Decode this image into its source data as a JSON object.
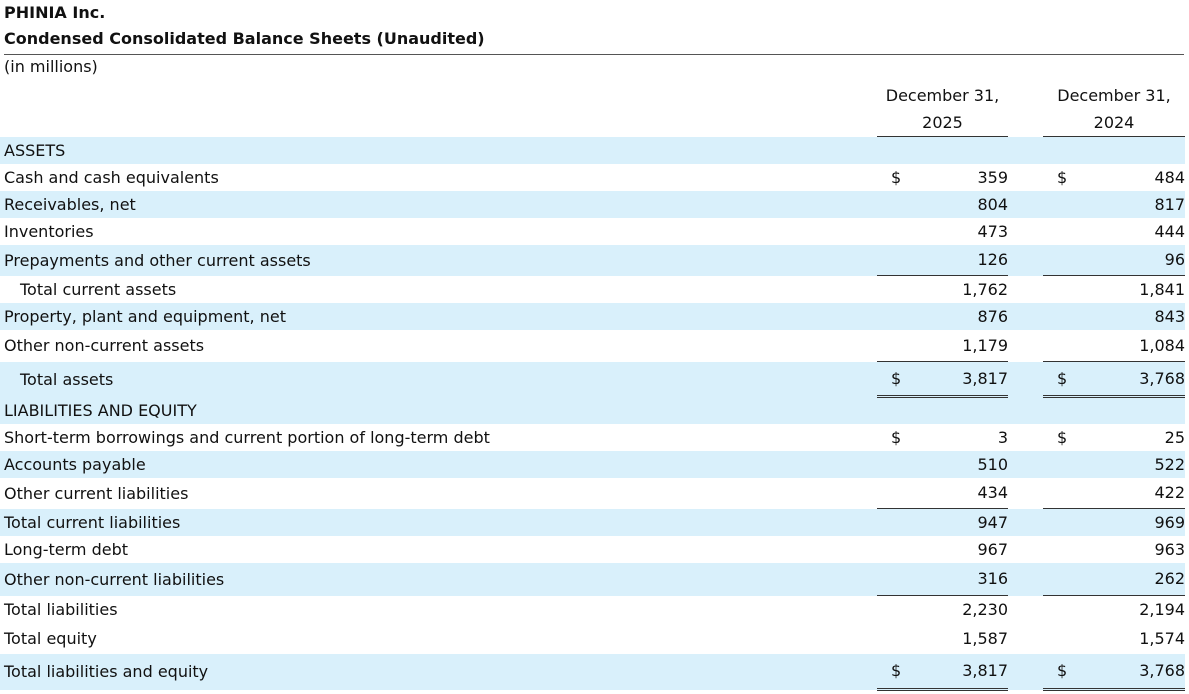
{
  "header": {
    "company": "PHINIA Inc.",
    "title": "Condensed Consolidated Balance Sheets (Unaudited)",
    "units": "(in millions)"
  },
  "table": {
    "columns": [
      {
        "line1": "December 31,",
        "line2": "2025"
      },
      {
        "line1": "December 31,",
        "line2": "2024"
      }
    ],
    "rows": [
      {
        "label": "ASSETS"
      },
      {
        "label": "Cash and cash equivalents",
        "cells": [
          {
            "currency": "$",
            "value": "359"
          },
          {
            "currency": "$",
            "value": "484"
          }
        ]
      },
      {
        "label": "Receivables, net",
        "cells": [
          {
            "value": "804"
          },
          {
            "value": "817"
          }
        ]
      },
      {
        "label": "Inventories",
        "cells": [
          {
            "value": "473"
          },
          {
            "value": "444"
          }
        ]
      },
      {
        "label": "Prepayments and other current assets",
        "cells": [
          {
            "value": "126"
          },
          {
            "value": "96"
          }
        ]
      },
      {
        "label": "Total current assets",
        "cells": [
          {
            "value": "1,762"
          },
          {
            "value": "1,841"
          }
        ]
      },
      {
        "label": "Property, plant and equipment, net",
        "cells": [
          {
            "value": "876"
          },
          {
            "value": "843"
          }
        ]
      },
      {
        "label": "Other non-current assets",
        "cells": [
          {
            "value": "1,179"
          },
          {
            "value": "1,084"
          }
        ]
      },
      {
        "label": "Total assets",
        "cells": [
          {
            "currency": "$",
            "value": "3,817"
          },
          {
            "currency": "$",
            "value": "3,768"
          }
        ]
      },
      {
        "label": "LIABILITIES AND EQUITY"
      },
      {
        "label": "Short-term borrowings and current portion of long-term debt",
        "cells": [
          {
            "currency": "$",
            "value": "3"
          },
          {
            "currency": "$",
            "value": "25"
          }
        ]
      },
      {
        "label": "Accounts payable",
        "cells": [
          {
            "value": "510"
          },
          {
            "value": "522"
          }
        ]
      },
      {
        "label": "Other current liabilities",
        "cells": [
          {
            "value": "434"
          },
          {
            "value": "422"
          }
        ]
      },
      {
        "label": "Total current liabilities",
        "cells": [
          {
            "value": "947"
          },
          {
            "value": "969"
          }
        ]
      },
      {
        "label": "Long-term debt",
        "cells": [
          {
            "value": "967"
          },
          {
            "value": "963"
          }
        ]
      },
      {
        "label": "Other non-current liabilities",
        "cells": [
          {
            "value": "316"
          },
          {
            "value": "262"
          }
        ]
      },
      {
        "label": "Total liabilities",
        "cells": [
          {
            "value": "2,230"
          },
          {
            "value": "2,194"
          }
        ]
      },
      {
        "label": "Total equity",
        "cells": [
          {
            "value": "1,587"
          },
          {
            "value": "1,574"
          }
        ]
      },
      {
        "label": "Total liabilities and equity",
        "cells": [
          {
            "currency": "$",
            "value": "3,817"
          },
          {
            "currency": "$",
            "value": "3,768"
          }
        ]
      }
    ]
  }
}
